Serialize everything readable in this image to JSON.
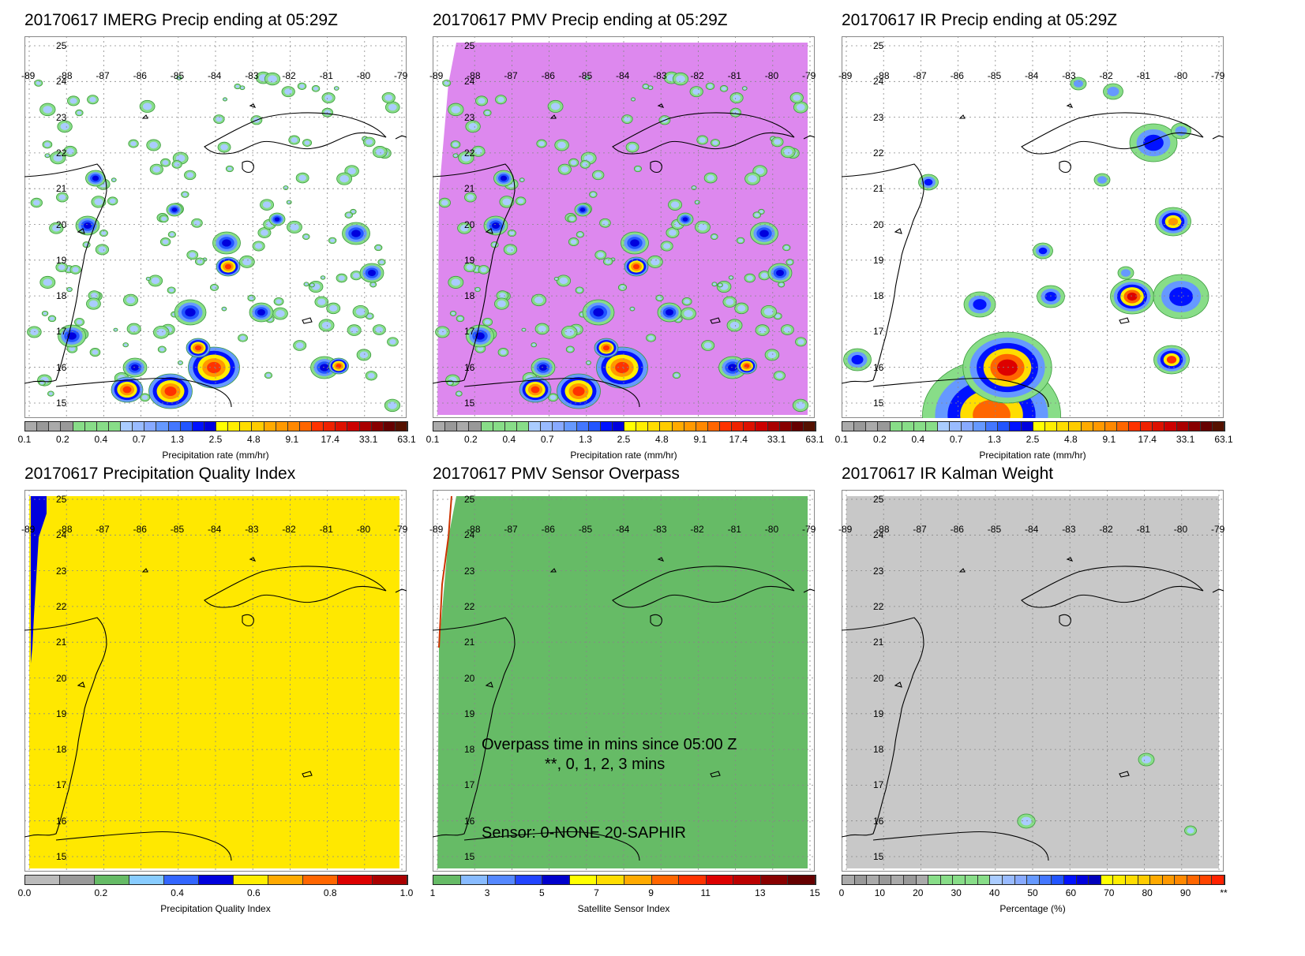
{
  "panels": [
    {
      "title": "20170617 IMERG Precip ending at 05:29Z",
      "kind": "precip",
      "fill": "#ffffff",
      "legend": "precip"
    },
    {
      "title": "20170617 PMV Precip ending at 05:29Z",
      "kind": "precip",
      "fill": "#dd88ee",
      "legend": "precip"
    },
    {
      "title": "20170617 IR Precip ending at 05:29Z",
      "kind": "ir",
      "fill": "#ffffff",
      "legend": "precip"
    },
    {
      "title": "20170617 Precipitation Quality Index",
      "kind": "quality",
      "fill": "#ffe800",
      "legend": "quality"
    },
    {
      "title": "20170617 PMV Sensor Overpass",
      "kind": "sensor",
      "fill": "#66bb66",
      "legend": "sensor"
    },
    {
      "title": "20170617 IR Kalman Weight",
      "kind": "kalman",
      "fill": "#c8c8c8",
      "legend": "kalman"
    }
  ],
  "lat_labels": [
    "25",
    "24",
    "23",
    "22",
    "21",
    "20",
    "19",
    "18",
    "17",
    "16",
    "15"
  ],
  "lon_labels": [
    "-89",
    "-88",
    "-87",
    "-86",
    "-85",
    "-84",
    "-83",
    "-82",
    "-81",
    "-80",
    "-79"
  ],
  "legends": {
    "precip": {
      "colors": [
        "#aaaaaa",
        "#999999",
        "#aaaaaa",
        "#999999",
        "#88dd88",
        "#88dd88",
        "#88dd88",
        "#88dd88",
        "#aaccff",
        "#99bbff",
        "#88aaff",
        "#6699ff",
        "#4477ff",
        "#2255ff",
        "#0011ff",
        "#0000dd",
        "#ffff00",
        "#ffee00",
        "#ffdd00",
        "#ffcc00",
        "#ffaa00",
        "#ff9900",
        "#ff8800",
        "#ff6600",
        "#ff3300",
        "#ee2200",
        "#dd1100",
        "#cc0000",
        "#aa0000",
        "#880000",
        "#660000",
        "#551100"
      ],
      "ticks": [
        "0.1",
        "0.2",
        "0.4",
        "0.7",
        "1.3",
        "2.5",
        "4.8",
        "9.1",
        "17.4",
        "33.1",
        "63.1"
      ],
      "unit": "Precipitation rate (mm/hr)"
    },
    "quality": {
      "colors": [
        "#bbbbbb",
        "#999999",
        "#66bb66",
        "#88ccff",
        "#3366ff",
        "#0000dd",
        "#ffee00",
        "#ffaa00",
        "#ff6600",
        "#dd0000",
        "#aa0000"
      ],
      "ticks": [
        "0.0",
        "0.2",
        "0.4",
        "0.6",
        "0.8",
        "1.0"
      ],
      "unit": "Precipitation Quality Index"
    },
    "sensor": {
      "colors": [
        "#66bb66",
        "#88bbff",
        "#5588ff",
        "#2244ff",
        "#0000cc",
        "#ffff00",
        "#ffdd00",
        "#ffaa00",
        "#ff6600",
        "#ff3300",
        "#dd0000",
        "#bb0000",
        "#880000",
        "#660000"
      ],
      "ticks": [
        "1",
        "3",
        "5",
        "7",
        "9",
        "11",
        "13",
        "15"
      ],
      "unit": "Satellite Sensor Index"
    },
    "kalman": {
      "colors": [
        "#aaaaaa",
        "#999999",
        "#aaaaaa",
        "#999999",
        "#aaaaaa",
        "#999999",
        "#aaaaaa",
        "#88dd88",
        "#88dd88",
        "#88dd88",
        "#88dd88",
        "#88dd88",
        "#aaccff",
        "#99bbff",
        "#88aaff",
        "#6699ff",
        "#4477ff",
        "#2255ff",
        "#0011ff",
        "#0000dd",
        "#0000bb",
        "#ffff00",
        "#ffee00",
        "#ffdd00",
        "#ffcc00",
        "#ffaa00",
        "#ff9900",
        "#ff8800",
        "#ff6600",
        "#ff4400",
        "#ff2200"
      ],
      "ticks": [
        "0",
        "10",
        "20",
        "30",
        "40",
        "50",
        "60",
        "70",
        "80",
        "90",
        "**"
      ],
      "unit": "Percentage (%)"
    }
  },
  "sensor_annotations": {
    "line1": "Overpass time in mins since 05:00 Z",
    "line2": "**, 0, 1, 2, 3 mins",
    "line3": "Sensor:   0-NONE 20-SAPHIR"
  },
  "colors": {
    "coast": "#000000",
    "grid": "#888888",
    "quality_blue": "#0000dd",
    "sensor_edge": "#cc3300"
  }
}
